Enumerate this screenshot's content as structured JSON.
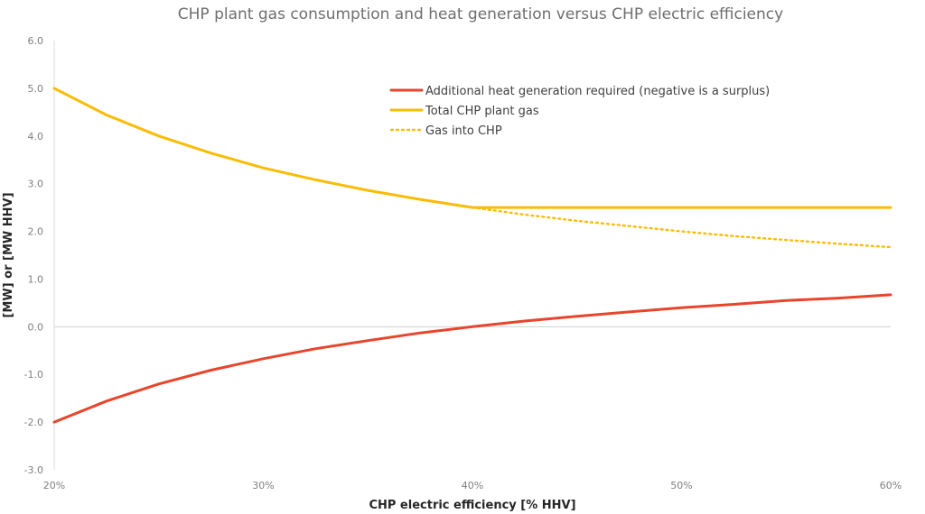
{
  "chart_data": {
    "type": "line",
    "title": "CHP plant gas consumption and heat generation versus CHP electric efficiency",
    "xlabel": "CHP electric efficiency [% HHV]",
    "ylabel": "[MW] or [MW HHV]",
    "xlim": [
      20,
      60
    ],
    "ylim": [
      -3.0,
      6.0
    ],
    "x_ticks": [
      "20%",
      "30%",
      "40%",
      "50%",
      "60%"
    ],
    "x_tick_values": [
      20,
      30,
      40,
      50,
      60
    ],
    "y_ticks": [
      "-3.0",
      "-2.0",
      "-1.0",
      "0.0",
      "1.0",
      "2.0",
      "3.0",
      "4.0",
      "5.0",
      "6.0"
    ],
    "y_tick_values": [
      -3,
      -2,
      -1,
      0,
      1,
      2,
      3,
      4,
      5,
      6
    ],
    "x": [
      20,
      22.5,
      25,
      27.5,
      30,
      32.5,
      35,
      37.5,
      40,
      42.5,
      45,
      47.5,
      50,
      52.5,
      55,
      57.5,
      60
    ],
    "series": [
      {
        "name": "Additional heat generation required (negative is a surplus)",
        "color": "#e8452c",
        "dash": "solid",
        "values": [
          -2.0,
          -1.56,
          -1.2,
          -0.91,
          -0.67,
          -0.46,
          -0.29,
          -0.13,
          0.0,
          0.12,
          0.22,
          0.31,
          0.4,
          0.47,
          0.55,
          0.6,
          0.67
        ]
      },
      {
        "name": "Total CHP plant gas",
        "color": "#fbbc04",
        "dash": "solid",
        "values": [
          5.0,
          4.44,
          4.0,
          3.64,
          3.33,
          3.08,
          2.86,
          2.67,
          2.5,
          2.5,
          2.5,
          2.5,
          2.5,
          2.5,
          2.5,
          2.5,
          2.5
        ]
      },
      {
        "name": "Gas into CHP",
        "color": "#fbbc04",
        "dash": "dotted",
        "values": [
          null,
          null,
          null,
          null,
          null,
          null,
          null,
          null,
          2.5,
          2.35,
          2.22,
          2.11,
          2.0,
          1.9,
          1.82,
          1.74,
          1.67
        ]
      }
    ],
    "grid": false,
    "legend_position": "top-right"
  }
}
